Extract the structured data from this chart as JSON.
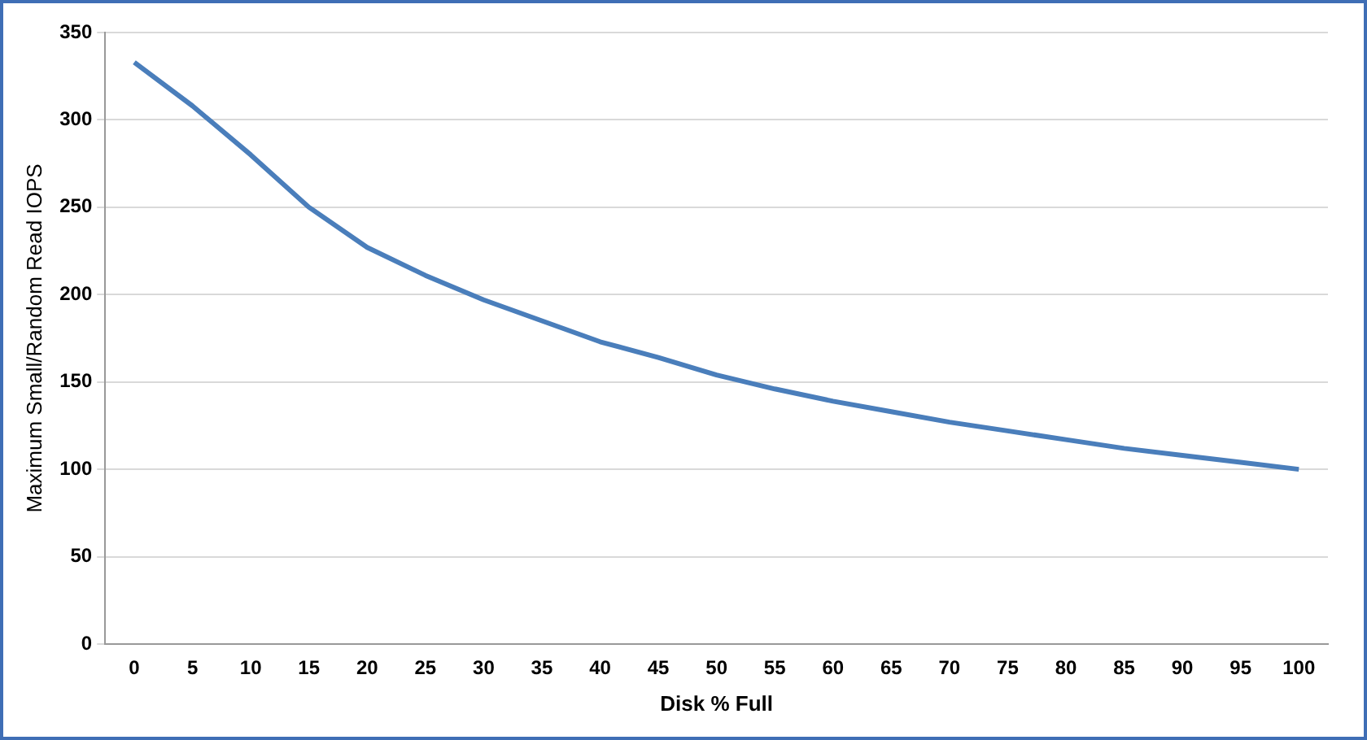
{
  "chart_data": {
    "type": "line",
    "xlabel": "Disk % Full",
    "ylabel": "Maximum Small/Random Read IOPS",
    "categories": [
      "0",
      "5",
      "10",
      "15",
      "20",
      "25",
      "30",
      "35",
      "40",
      "45",
      "50",
      "55",
      "60",
      "65",
      "70",
      "75",
      "80",
      "85",
      "90",
      "95",
      "100"
    ],
    "series": [
      {
        "color": "#4a7ebb",
        "values": [
          333,
          308,
          280,
          250,
          227,
          211,
          197,
          185,
          173,
          164,
          154,
          146,
          139,
          133,
          127,
          122,
          117,
          112,
          108,
          104,
          100
        ]
      }
    ],
    "ylim": [
      0,
      350
    ],
    "yticks": [
      0,
      50,
      100,
      150,
      200,
      250,
      300,
      350
    ],
    "grid": "y",
    "legend": false,
    "marker": "none",
    "line_style": "solid"
  }
}
